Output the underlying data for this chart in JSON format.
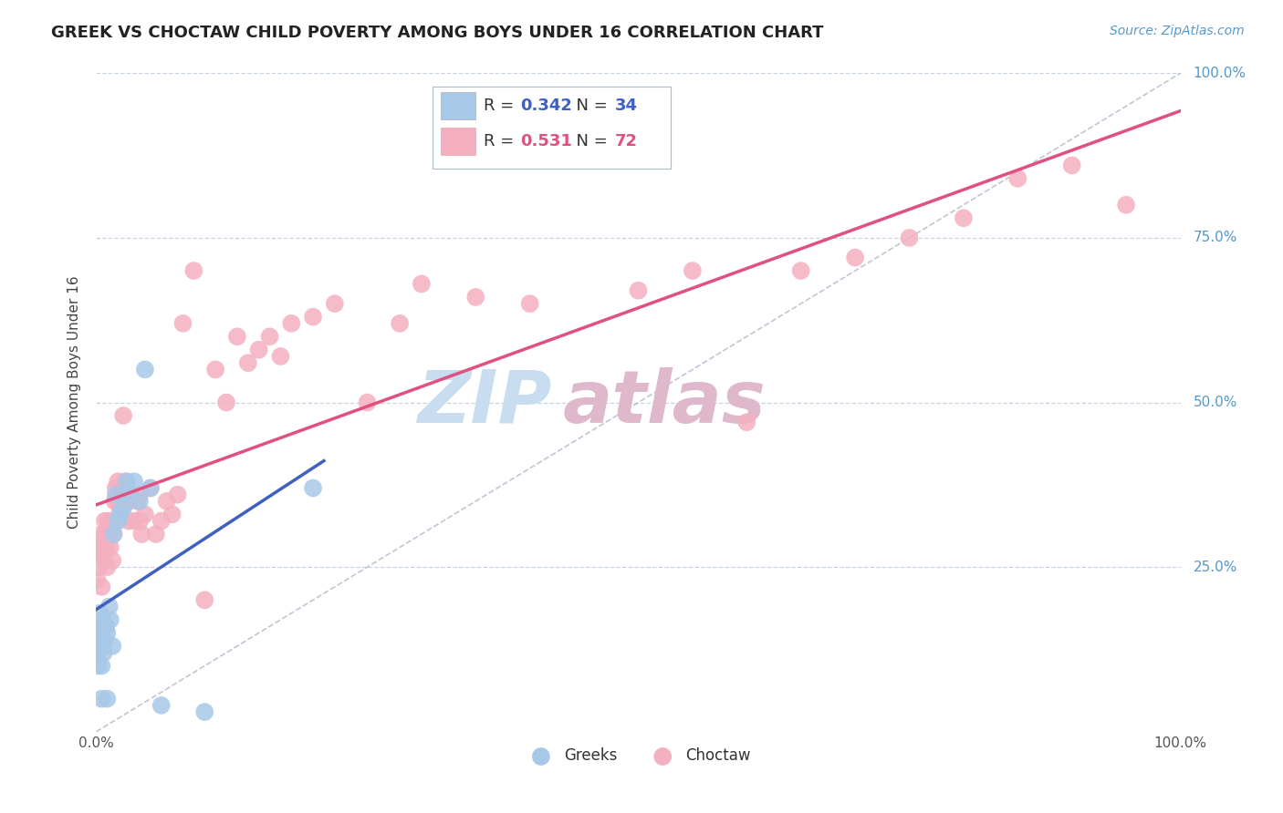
{
  "title": "GREEK VS CHOCTAW CHILD POVERTY AMONG BOYS UNDER 16 CORRELATION CHART",
  "source": "Source: ZipAtlas.com",
  "ylabel": "Child Poverty Among Boys Under 16",
  "xlim": [
    0,
    1
  ],
  "ylim": [
    0,
    1
  ],
  "xtick_labels": [
    "0.0%",
    "100.0%"
  ],
  "ytick_labels": [
    "25.0%",
    "50.0%",
    "75.0%",
    "100.0%"
  ],
  "ytick_positions": [
    0.25,
    0.5,
    0.75,
    1.0
  ],
  "greek_color": "#a8c8e8",
  "choctaw_color": "#f4b0c0",
  "greek_line_color": "#4060c0",
  "choctaw_line_color": "#e05080",
  "diagonal_color": "#b0b8c8",
  "legend_greek_R": "0.342",
  "legend_greek_N": "34",
  "legend_choctaw_R": "0.531",
  "legend_choctaw_N": "72",
  "greek_x": [
    0.001,
    0.002,
    0.002,
    0.003,
    0.003,
    0.004,
    0.004,
    0.005,
    0.005,
    0.005,
    0.006,
    0.006,
    0.007,
    0.008,
    0.009,
    0.01,
    0.01,
    0.012,
    0.013,
    0.015,
    0.016,
    0.018,
    0.02,
    0.022,
    0.025,
    0.028,
    0.03,
    0.035,
    0.04,
    0.045,
    0.05,
    0.06,
    0.1,
    0.2
  ],
  "greek_y": [
    0.12,
    0.1,
    0.14,
    0.16,
    0.18,
    0.14,
    0.16,
    0.05,
    0.1,
    0.15,
    0.13,
    0.17,
    0.12,
    0.14,
    0.16,
    0.05,
    0.15,
    0.19,
    0.17,
    0.13,
    0.3,
    0.36,
    0.32,
    0.33,
    0.34,
    0.38,
    0.36,
    0.38,
    0.35,
    0.55,
    0.37,
    0.04,
    0.03,
    0.37
  ],
  "choctaw_x": [
    0.001,
    0.002,
    0.003,
    0.004,
    0.005,
    0.005,
    0.006,
    0.007,
    0.008,
    0.008,
    0.009,
    0.01,
    0.01,
    0.011,
    0.012,
    0.013,
    0.014,
    0.015,
    0.016,
    0.017,
    0.018,
    0.019,
    0.02,
    0.02,
    0.022,
    0.024,
    0.025,
    0.027,
    0.028,
    0.03,
    0.03,
    0.032,
    0.035,
    0.038,
    0.04,
    0.04,
    0.042,
    0.045,
    0.05,
    0.055,
    0.06,
    0.065,
    0.07,
    0.075,
    0.08,
    0.09,
    0.1,
    0.11,
    0.12,
    0.13,
    0.14,
    0.15,
    0.16,
    0.17,
    0.18,
    0.2,
    0.22,
    0.25,
    0.28,
    0.3,
    0.35,
    0.4,
    0.5,
    0.55,
    0.6,
    0.65,
    0.7,
    0.75,
    0.8,
    0.85,
    0.9,
    0.95
  ],
  "choctaw_y": [
    0.23,
    0.27,
    0.25,
    0.28,
    0.22,
    0.3,
    0.28,
    0.26,
    0.3,
    0.32,
    0.28,
    0.25,
    0.3,
    0.32,
    0.3,
    0.28,
    0.32,
    0.26,
    0.3,
    0.35,
    0.37,
    0.32,
    0.35,
    0.38,
    0.34,
    0.37,
    0.48,
    0.38,
    0.36,
    0.32,
    0.35,
    0.36,
    0.32,
    0.35,
    0.32,
    0.36,
    0.3,
    0.33,
    0.37,
    0.3,
    0.32,
    0.35,
    0.33,
    0.36,
    0.62,
    0.7,
    0.2,
    0.55,
    0.5,
    0.6,
    0.56,
    0.58,
    0.6,
    0.57,
    0.62,
    0.63,
    0.65,
    0.5,
    0.62,
    0.68,
    0.66,
    0.65,
    0.67,
    0.7,
    0.47,
    0.7,
    0.72,
    0.75,
    0.78,
    0.84,
    0.86,
    0.8
  ],
  "background_color": "#ffffff",
  "grid_color": "#c8d4e4",
  "title_fontsize": 13,
  "label_fontsize": 11,
  "tick_fontsize": 11,
  "source_fontsize": 10,
  "watermark_ZIP_color": "#c8ddf0",
  "watermark_atlas_color": "#e0b8cc"
}
